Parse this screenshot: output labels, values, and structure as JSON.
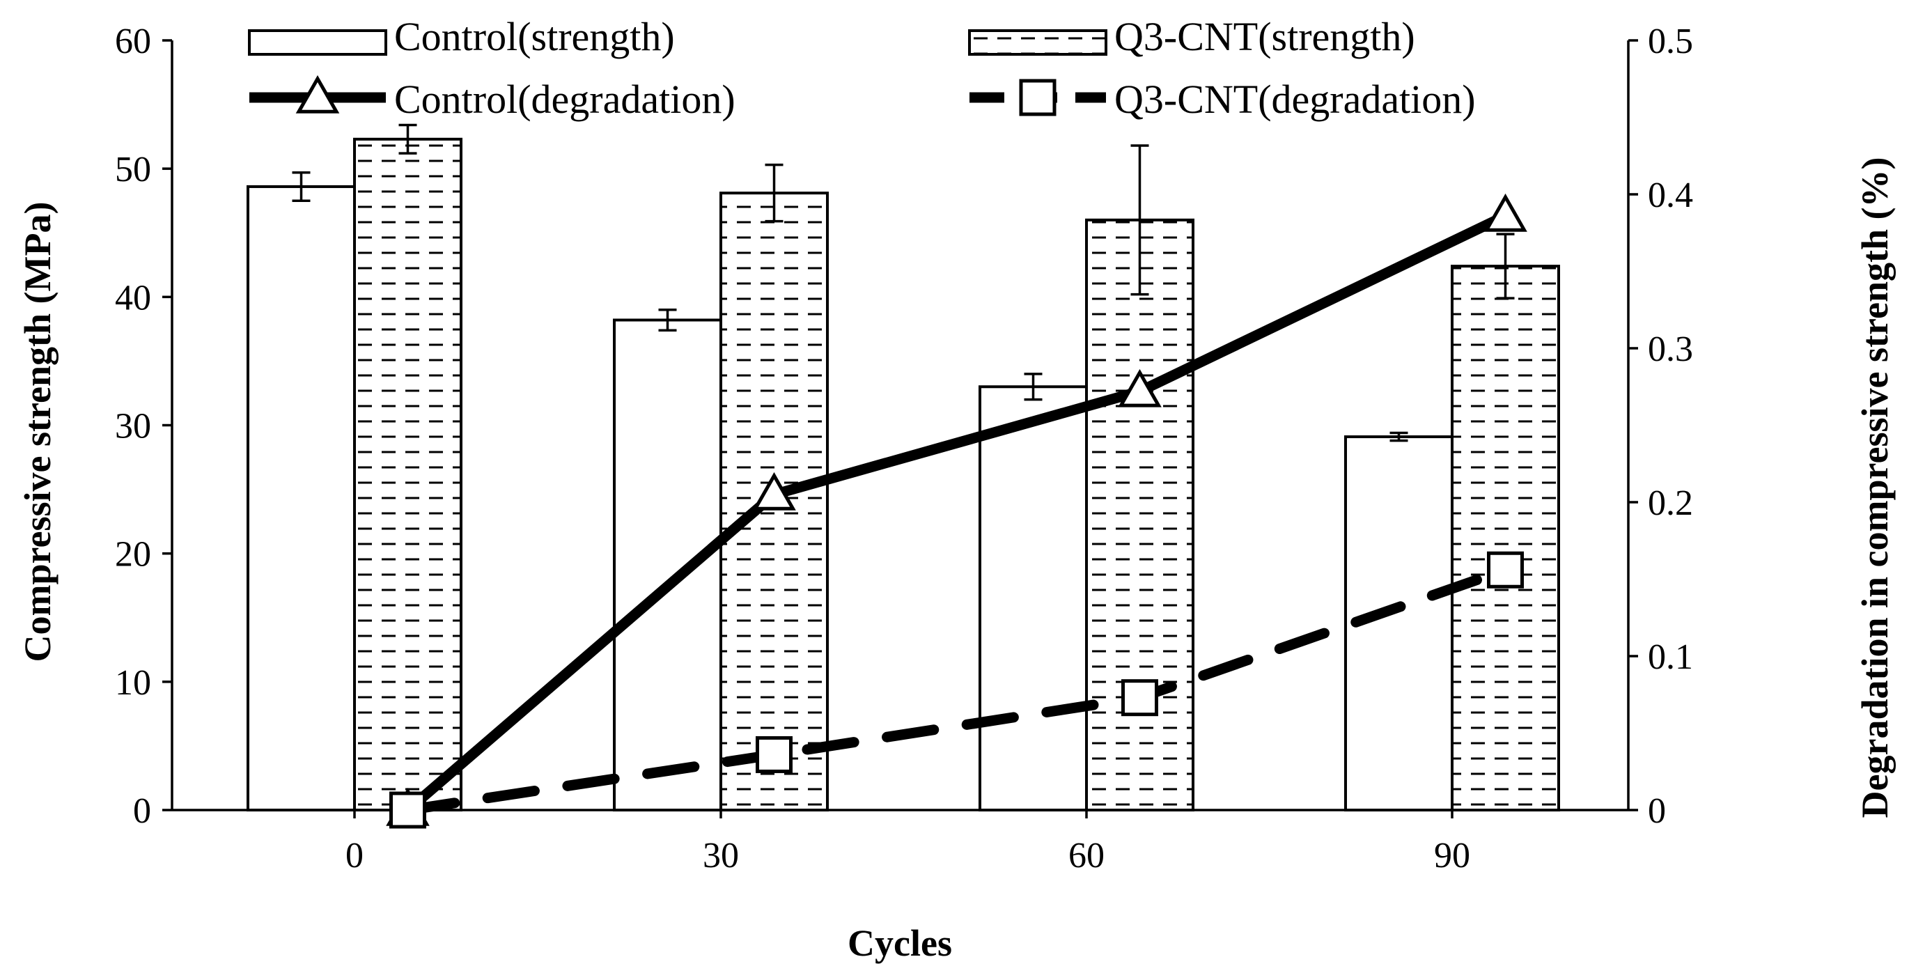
{
  "chart_data": {
    "type": "bar+line",
    "categories": [
      "0",
      "30",
      "60",
      "90"
    ],
    "bar_series": [
      {
        "name": "Control(strength)",
        "values": [
          48.6,
          38.2,
          33.0,
          29.1
        ],
        "errors": [
          1.1,
          0.8,
          1.0,
          0.3
        ],
        "pattern": "white"
      },
      {
        "name": "Q3-CNT(strength)",
        "values": [
          52.3,
          48.1,
          46.0,
          42.4
        ],
        "errors": [
          1.1,
          2.2,
          5.8,
          2.5
        ],
        "pattern": "dashed-hatch"
      }
    ],
    "line_series": [
      {
        "name": "Control(degradation)",
        "values": [
          0.0,
          0.205,
          0.272,
          0.386
        ],
        "marker": "triangle",
        "style": "solid",
        "anchor_group": [
          0,
          1,
          1,
          1
        ]
      },
      {
        "name": "Q3-CNT(degradation)",
        "values": [
          0.0,
          0.036,
          0.073,
          0.156
        ],
        "marker": "square",
        "style": "dashed",
        "anchor_group": [
          0,
          1,
          1,
          1
        ]
      }
    ],
    "y_left": {
      "label": "Compressive strength (MPa)",
      "range": [
        0,
        60
      ],
      "ticks": [
        "0",
        "10",
        "20",
        "30",
        "40",
        "50",
        "60"
      ]
    },
    "y_right": {
      "label": "Degradation in compressive strength (%)",
      "range": [
        0,
        0.5
      ],
      "ticks": [
        "0",
        "0.1",
        "0.2",
        "0.3",
        "0.4",
        "0.5"
      ]
    },
    "xlabel": "Cycles",
    "legend_position": "top",
    "grid": false
  }
}
